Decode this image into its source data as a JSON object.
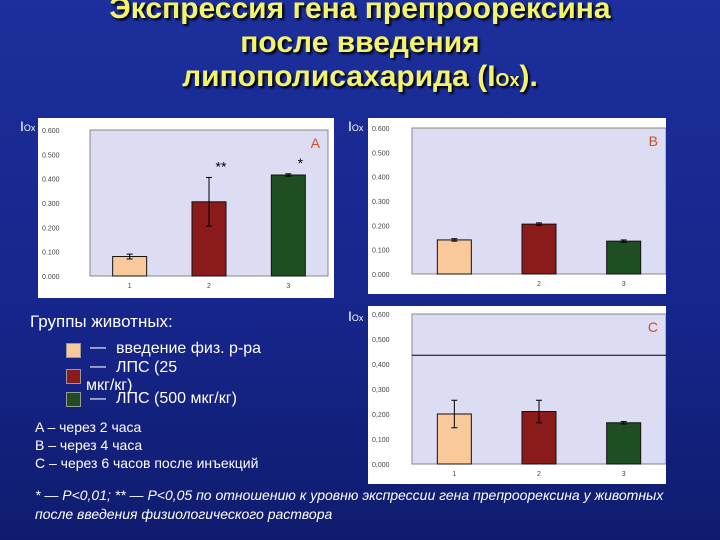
{
  "title": {
    "line1": "Экспрессия гена препроорексина",
    "line2": "после введения",
    "line3": "липополисахарида (I",
    "line3_sub": "Ox",
    "line3_end": ")."
  },
  "axis_label": {
    "main": "I",
    "sub": "Ox"
  },
  "legend": {
    "title": "Группы животных:",
    "items": [
      {
        "dash": "—",
        "text": "введение физ. р-ра",
        "color": "#f9c89b"
      },
      {
        "dash": "—",
        "text": "ЛПС (25",
        "color": "#8b1a1a"
      },
      {
        "dash": "—",
        "text": "ЛПС (500 мкг/кг)",
        "color": "#1f4e23"
      }
    ],
    "wrap_text": "мкг/кг)"
  },
  "notes": [
    "A – через 2 часа",
    "B – через 4 часа",
    "C – через 6 часов после инъекций"
  ],
  "footnote": "* — P<0,01; ** — P<0,05 по отношению к уровню экспрессии гена препроорексина у животных после введения физиологического раствора",
  "chart_data": [
    {
      "type": "bar",
      "panel_label": "A",
      "categories": [
        "1",
        "2",
        "3"
      ],
      "values": [
        0.08,
        0.305,
        0.415
      ],
      "errors": [
        0.01,
        0.1,
        0.005
      ],
      "colors": [
        "#f9c89b",
        "#8b1a1a",
        "#1f4e23"
      ],
      "annotations": [
        "",
        "**",
        "*"
      ],
      "ylim": [
        0,
        0.6
      ],
      "yticks": [
        "0.000",
        "0.100",
        "0.200",
        "0.300",
        "0.400",
        "0.500",
        "0.600"
      ]
    },
    {
      "type": "bar",
      "panel_label": "B",
      "categories": [
        "",
        "2",
        "3"
      ],
      "values": [
        0.14,
        0.205,
        0.135
      ],
      "errors": [
        0.005,
        0.005,
        0.005
      ],
      "colors": [
        "#f9c89b",
        "#8b1a1a",
        "#1f4e23"
      ],
      "annotations": [
        "",
        "",
        ""
      ],
      "ylim": [
        0,
        0.6
      ],
      "yticks": [
        "0.000",
        "0.100",
        "0.200",
        "0.300",
        "0.400",
        "0.500",
        "0.600"
      ]
    },
    {
      "type": "bar",
      "panel_label": "C",
      "categories": [
        "1",
        "2",
        "3"
      ],
      "values": [
        0.2,
        0.21,
        0.165
      ],
      "errors": [
        0.055,
        0.045,
        0.005
      ],
      "colors": [
        "#f9c89b",
        "#8b1a1a",
        "#1f4e23"
      ],
      "annotations": [
        "",
        "",
        ""
      ],
      "ylim": [
        0,
        0.6
      ],
      "yticks": [
        "0,000",
        "0,100",
        "0,200",
        "0,300",
        "0,400",
        "0,500",
        "0,600"
      ],
      "reference_line": 0.435
    }
  ]
}
